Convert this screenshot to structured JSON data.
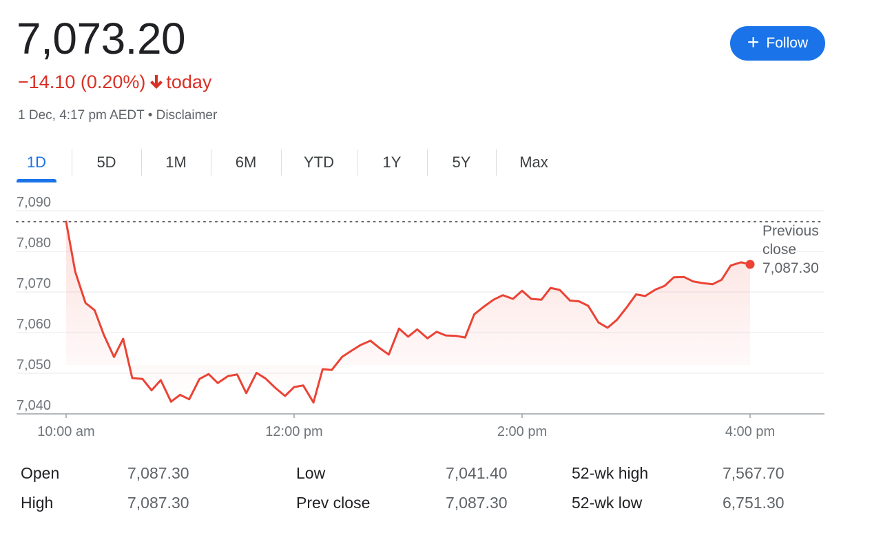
{
  "quote": {
    "price": "7,073.20",
    "change": "−14.10 (0.20%)",
    "change_suffix": "today",
    "timestamp": "1 Dec, 4:17 pm AEDT",
    "separator": "•",
    "disclaimer": "Disclaimer"
  },
  "follow_button": {
    "label": "Follow",
    "icon": "plus-icon"
  },
  "range_tabs": [
    "1D",
    "5D",
    "1M",
    "6M",
    "YTD",
    "1Y",
    "5Y",
    "Max"
  ],
  "active_tab": "1D",
  "colors": {
    "down": "#d93025",
    "accent": "#1a73e8",
    "line": "#ea4335",
    "grid": "#e8eaed",
    "axis_text": "#70757a"
  },
  "previous_close_label": {
    "line1": "Previous",
    "line2": "close",
    "value": "7,087.30"
  },
  "chart_data": {
    "type": "line",
    "title": "",
    "xlabel": "",
    "ylabel": "",
    "x_domain_hours": [
      10.0,
      17.0
    ],
    "ylim": [
      7040,
      7090
    ],
    "yticks": [
      7040,
      7050,
      7060,
      7070,
      7080,
      7090
    ],
    "ytick_labels": [
      "7,040",
      "7,050",
      "7,060",
      "7,070",
      "7,080",
      "7,090"
    ],
    "xticks": [
      10,
      12,
      14,
      16
    ],
    "xtick_labels": [
      "10:00 am",
      "12:00 pm",
      "2:00 pm",
      "4:00 pm"
    ],
    "previous_close": 7087.3,
    "grid": true,
    "series": [
      {
        "x": [
          10.0,
          10.08,
          10.17,
          10.25,
          10.33,
          10.42,
          10.5,
          10.58,
          10.67,
          10.75,
          10.83,
          10.92,
          11.0,
          11.08,
          11.17,
          11.25,
          11.33,
          11.42,
          11.5,
          11.58,
          11.67,
          11.75,
          11.83,
          11.92,
          12.0,
          12.08,
          12.17,
          12.25,
          12.33,
          12.42,
          12.5,
          12.58,
          12.67,
          12.75,
          12.83,
          12.92,
          13.0,
          13.08,
          13.17,
          13.25,
          13.33,
          13.42,
          13.5,
          13.58,
          13.67,
          13.75,
          13.83,
          13.92,
          14.0,
          14.08,
          14.17,
          14.25,
          14.33,
          14.42,
          14.5,
          14.58,
          14.67,
          14.75,
          14.83,
          14.92,
          15.0,
          15.08,
          15.17,
          15.25,
          15.33,
          15.42,
          15.5,
          15.58,
          15.67,
          15.75,
          15.83,
          15.92,
          16.0
        ],
        "y": [
          7087.3,
          7075.0,
          7067.3,
          7065.5,
          7059.5,
          7054.0,
          7058.5,
          7048.8,
          7048.6,
          7045.8,
          7048.3,
          7043.0,
          7044.7,
          7043.6,
          7048.6,
          7049.8,
          7047.6,
          7049.3,
          7049.7,
          7045.1,
          7050.1,
          7048.7,
          7046.5,
          7044.4,
          7046.6,
          7047.0,
          7042.8,
          7051.0,
          7050.8,
          7054.0,
          7055.5,
          7056.9,
          7058.0,
          7056.2,
          7054.6,
          7061.0,
          7059.0,
          7060.8,
          7058.6,
          7060.2,
          7059.3,
          7059.2,
          7058.8,
          7064.5,
          7066.5,
          7068.1,
          7069.2,
          7068.3,
          7070.3,
          7068.3,
          7068.1,
          7071.0,
          7070.5,
          7067.9,
          7067.7,
          7066.6,
          7062.5,
          7061.2,
          7063.1,
          7066.3,
          7069.4,
          7069.0,
          7070.6,
          7071.5,
          7073.6,
          7073.7,
          7072.6,
          7072.2,
          7071.9,
          7073.0,
          7076.5,
          7077.3,
          7076.8
        ]
      }
    ]
  },
  "stats": [
    [
      {
        "label": "Open",
        "value": "7,087.30"
      },
      {
        "label": "Low",
        "value": "7,041.40"
      },
      {
        "label": "52-wk high",
        "value": "7,567.70"
      }
    ],
    [
      {
        "label": "High",
        "value": "7,087.30"
      },
      {
        "label": "Prev close",
        "value": "7,087.30"
      },
      {
        "label": "52-wk low",
        "value": "6,751.30"
      }
    ]
  ]
}
